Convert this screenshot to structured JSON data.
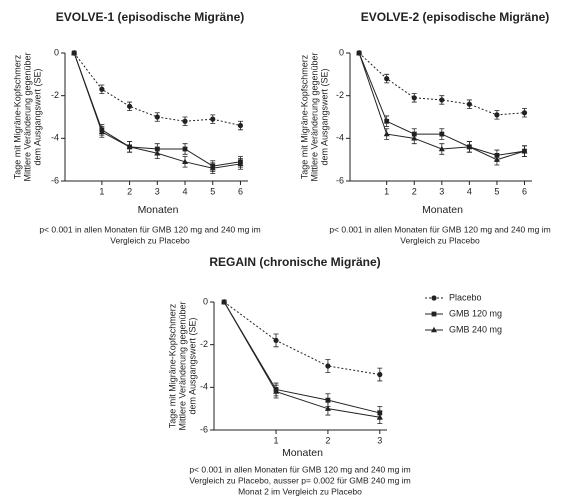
{
  "chart_data": [
    {
      "type": "line",
      "title": "EVOLVE-1 (episodische Migräne)",
      "ylabel": [
        "Tage mit Migräne-Kopfschmerz",
        "Mittlere Veränderung gegenüber",
        "dem Ausgangswert (SE)"
      ],
      "xlabel": "Monaten",
      "note": [
        "p< 0.001 in allen Monaten für GMB 120 mg and 240 mg im",
        "Vergleich zu Placebo"
      ],
      "x": [
        0,
        1,
        2,
        3,
        4,
        5,
        6
      ],
      "xlim": [
        -0.15,
        6.2
      ],
      "xticks": [
        1,
        2,
        3,
        4,
        5,
        6
      ],
      "ylim": [
        -6,
        0
      ],
      "yticks": [
        0,
        -2,
        -4,
        -6
      ],
      "series": [
        {
          "name": "Placebo",
          "color": "#222222",
          "dash": true,
          "marker": "circle",
          "values": [
            0,
            -1.7,
            -2.5,
            -3.0,
            -3.2,
            -3.1,
            -3.4
          ],
          "errors": [
            0,
            0.2,
            0.2,
            0.2,
            0.2,
            0.2,
            0.2
          ]
        },
        {
          "name": "GMB 120 mg",
          "color": "#222222",
          "dash": false,
          "marker": "square",
          "values": [
            0,
            -3.6,
            -4.4,
            -4.5,
            -4.5,
            -5.3,
            -5.1
          ],
          "errors": [
            0,
            0.25,
            0.25,
            0.25,
            0.25,
            0.25,
            0.25
          ]
        },
        {
          "name": "GMB 240 mg",
          "color": "#222222",
          "dash": false,
          "marker": "triangle",
          "values": [
            0,
            -3.7,
            -4.4,
            -4.7,
            -5.1,
            -5.4,
            -5.2
          ],
          "errors": [
            0,
            0.25,
            0.25,
            0.25,
            0.25,
            0.25,
            0.25
          ]
        }
      ]
    },
    {
      "type": "line",
      "title": "EVOLVE-2 (episodische Migräne)",
      "ylabel": [
        "Tage mit Migräne-Kopfschmerz",
        "Mittlere Veränderung gegenüber",
        "dem Ausgangswert (SE)"
      ],
      "xlabel": "Monaten",
      "note": [
        "p< 0.001 in allen Monaten für GMB 120 mg and 240 mg im",
        "Vergleich zu Placebo"
      ],
      "x": [
        0,
        1,
        2,
        3,
        4,
        5,
        6
      ],
      "xlim": [
        -0.15,
        6.2
      ],
      "xticks": [
        1,
        2,
        3,
        4,
        5,
        6
      ],
      "ylim": [
        -6,
        0
      ],
      "yticks": [
        0,
        -2,
        -4,
        -6
      ],
      "series": [
        {
          "name": "Placebo",
          "color": "#222222",
          "dash": true,
          "marker": "circle",
          "values": [
            0,
            -1.2,
            -2.1,
            -2.2,
            -2.4,
            -2.9,
            -2.8
          ],
          "errors": [
            0,
            0.2,
            0.2,
            0.2,
            0.2,
            0.2,
            0.2
          ]
        },
        {
          "name": "GMB 120 mg",
          "color": "#222222",
          "dash": false,
          "marker": "square",
          "values": [
            0,
            -3.2,
            -3.8,
            -3.8,
            -4.4,
            -4.8,
            -4.6
          ],
          "errors": [
            0,
            0.25,
            0.25,
            0.25,
            0.25,
            0.25,
            0.25
          ]
        },
        {
          "name": "GMB 240 mg",
          "color": "#222222",
          "dash": false,
          "marker": "triangle",
          "values": [
            0,
            -3.8,
            -4.0,
            -4.5,
            -4.4,
            -5.0,
            -4.6
          ],
          "errors": [
            0,
            0.25,
            0.25,
            0.25,
            0.25,
            0.25,
            0.25
          ]
        }
      ]
    },
    {
      "type": "line",
      "title": "REGAIN (chronische Migräne)",
      "ylabel": [
        "Tage mit Migräne-Kopfschmerz",
        "Mittlere Veränderung gegenüber",
        "dem Ausgangswert (SE)"
      ],
      "xlabel": "Monaten",
      "note": [
        "p< 0.001 in allen Monaten für GMB 120 mg and 240 mg im",
        "Vergleich zu Placebo, ausser p= 0.002 für GMB 240 mg im",
        "Monat 2 im Vergleich zu Placebo"
      ],
      "x": [
        0,
        1,
        2,
        3
      ],
      "xlim": [
        -0.08,
        3.1
      ],
      "xticks": [
        1,
        2,
        3
      ],
      "ylim": [
        -6,
        0
      ],
      "yticks": [
        0,
        -2,
        -4,
        -6
      ],
      "legend": "right",
      "series": [
        {
          "name": "Placebo",
          "color": "#222222",
          "dash": true,
          "marker": "circle",
          "values": [
            0,
            -1.8,
            -3.0,
            -3.4
          ],
          "errors": [
            0,
            0.3,
            0.3,
            0.3
          ]
        },
        {
          "name": "GMB 120 mg",
          "color": "#222222",
          "dash": false,
          "marker": "square",
          "values": [
            0,
            -4.1,
            -4.6,
            -5.2
          ],
          "errors": [
            0,
            0.3,
            0.3,
            0.3
          ]
        },
        {
          "name": "GMB 240 mg",
          "color": "#222222",
          "dash": false,
          "marker": "triangle",
          "values": [
            0,
            -4.2,
            -5.0,
            -5.4
          ],
          "errors": [
            0,
            0.3,
            0.3,
            0.3
          ]
        }
      ]
    }
  ]
}
